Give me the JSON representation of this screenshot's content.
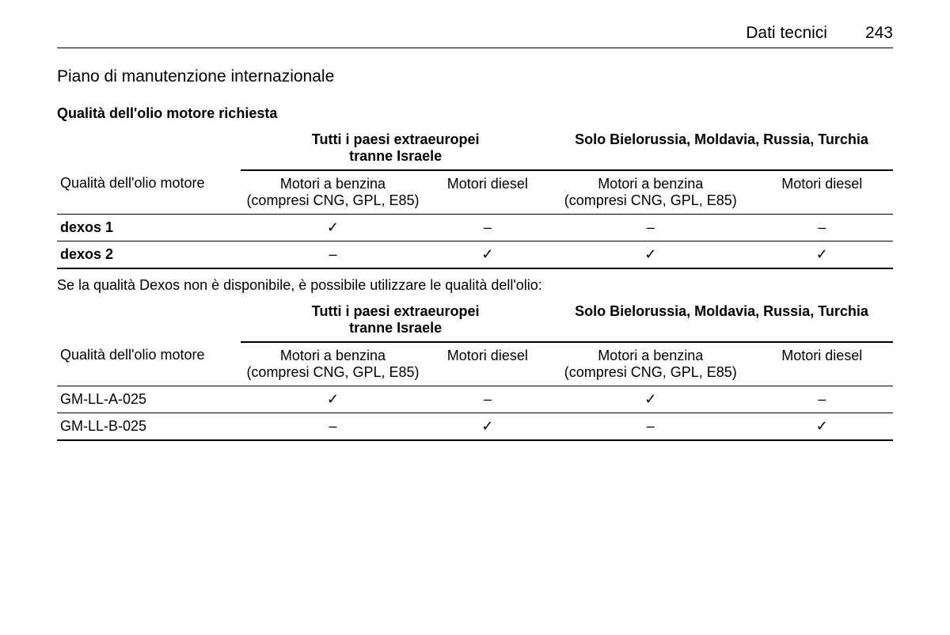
{
  "header": {
    "title": "Dati tecnici",
    "page": "243"
  },
  "section_title": "Piano di manutenzione internazionale",
  "table1": {
    "subtitle": "Qualità dell'olio motore richiesta",
    "group_headers": {
      "col0": "",
      "group1_line1": "Tutti i paesi extraeuropei",
      "group1_line2": "tranne Israele",
      "group2": "Solo Bielorussia, Moldavia, Russia, Turchia"
    },
    "sub_headers": {
      "col0": "Qualità dell'olio motore",
      "col1_line1": "Motori a benzina",
      "col1_line2": "(compresi CNG, GPL, E85)",
      "col2": "Motori diesel",
      "col3_line1": "Motori a benzina",
      "col3_line2": "(compresi CNG, GPL, E85)",
      "col4": "Motori diesel"
    },
    "rows": [
      {
        "label": "dexos 1",
        "c1": "✓",
        "c2": "–",
        "c3": "–",
        "c4": "–"
      },
      {
        "label": "dexos 2",
        "c1": "–",
        "c2": "✓",
        "c3": "✓",
        "c4": "✓"
      }
    ]
  },
  "intertext": "Se la qualità Dexos non è disponibile, è possibile utilizzare le qualità dell'olio:",
  "table2": {
    "group_headers": {
      "col0": "",
      "group1_line1": "Tutti i paesi extraeuropei",
      "group1_line2": "tranne Israele",
      "group2": "Solo Bielorussia, Moldavia, Russia, Turchia"
    },
    "sub_headers": {
      "col0": "Qualità dell'olio motore",
      "col1_line1": "Motori a benzina",
      "col1_line2": "(compresi CNG, GPL, E85)",
      "col2": "Motori diesel",
      "col3_line1": "Motori a benzina",
      "col3_line2": "(compresi CNG, GPL, E85)",
      "col4": "Motori diesel"
    },
    "rows": [
      {
        "label": "GM-LL-A-025",
        "c1": "✓",
        "c2": "–",
        "c3": "✓",
        "c4": "–"
      },
      {
        "label": "GM-LL-B-025",
        "c1": "–",
        "c2": "✓",
        "c3": "–",
        "c4": "✓"
      }
    ]
  },
  "colwidths": {
    "c0": "22%",
    "c1": "22%",
    "c2": "15%",
    "c3": "24%",
    "c4": "17%"
  }
}
